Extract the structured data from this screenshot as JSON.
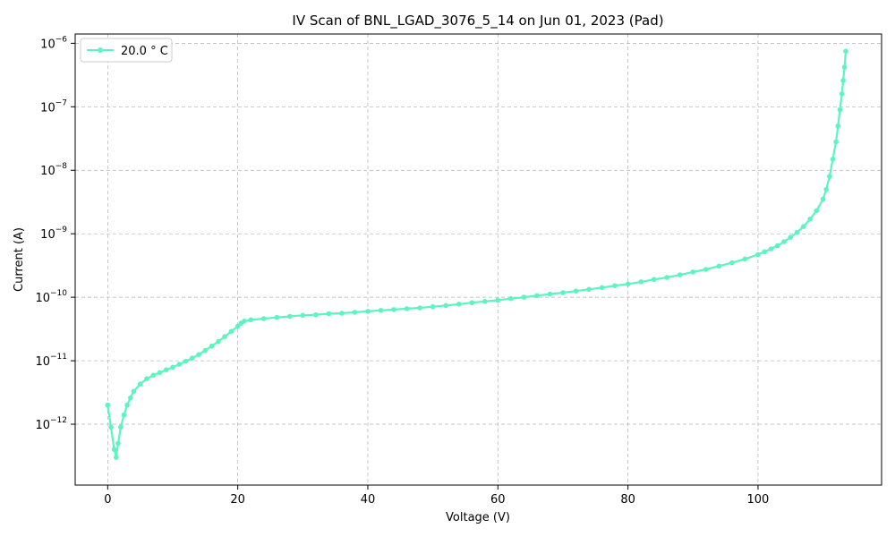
{
  "chart_data": {
    "type": "line",
    "title": "IV Scan of BNL_LGAD_3076_5_14 on Jun 01, 2023 (Pad)",
    "xlabel": "Voltage (V)",
    "ylabel": "Current (A)",
    "y_scale": "log",
    "xlim": [
      -5,
      119
    ],
    "ylim": [
      1.1e-13,
      1.4e-06
    ],
    "grid": true,
    "legend_position": "top-left",
    "x_ticks": [
      0,
      20,
      40,
      60,
      80,
      100
    ],
    "x_tick_labels": [
      "0",
      "20",
      "40",
      "60",
      "80",
      "100"
    ],
    "y_ticks": [
      1e-12,
      1e-11,
      1e-10,
      1e-09,
      1e-08,
      1e-07,
      1e-06
    ],
    "y_tick_labels": [
      {
        "base": "10",
        "exp": "−12"
      },
      {
        "base": "10",
        "exp": "−11"
      },
      {
        "base": "10",
        "exp": "−10"
      },
      {
        "base": "10",
        "exp": "−9"
      },
      {
        "base": "10",
        "exp": "−8"
      },
      {
        "base": "10",
        "exp": "−7"
      },
      {
        "base": "10",
        "exp": "−6"
      }
    ],
    "series": [
      {
        "name": "20.0$^\\circ$C",
        "legend_label": "20.0 ° C",
        "color": "#5cf5c0",
        "x": [
          0,
          0.5,
          1.0,
          1.3,
          1.6,
          2.0,
          2.5,
          3.0,
          3.5,
          4.0,
          5.0,
          6.0,
          7.0,
          8.0,
          9.0,
          10.0,
          11.0,
          12.0,
          13.0,
          14.0,
          15.0,
          16.0,
          17.0,
          18.0,
          19.0,
          20.0,
          20.5,
          21.0,
          22.0,
          24.0,
          26.0,
          28.0,
          30.0,
          32.0,
          34.0,
          36.0,
          38.0,
          40.0,
          42.0,
          44.0,
          46.0,
          48.0,
          50.0,
          52.0,
          54.0,
          56.0,
          58.0,
          60.0,
          62.0,
          64.0,
          66.0,
          68.0,
          70.0,
          72.0,
          74.0,
          76.0,
          78.0,
          80.0,
          82.0,
          84.0,
          86.0,
          88.0,
          90.0,
          92.0,
          94.0,
          96.0,
          98.0,
          100.0,
          101.0,
          102.0,
          103.0,
          104.0,
          105.0,
          106.0,
          107.0,
          108.0,
          109.0,
          110.0,
          110.5,
          111.0,
          111.5,
          112.0,
          112.3,
          112.6,
          112.9,
          113.1,
          113.3,
          113.5
        ],
        "y": [
          2e-12,
          9e-13,
          4e-13,
          3e-13,
          5e-13,
          9e-13,
          1.4e-12,
          2e-12,
          2.6e-12,
          3.3e-12,
          4.3e-12,
          5.2e-12,
          5.9e-12,
          6.5e-12,
          7.2e-12,
          7.9e-12,
          8.8e-12,
          9.8e-12,
          1.1e-11,
          1.25e-11,
          1.45e-11,
          1.7e-11,
          2e-11,
          2.4e-11,
          2.9e-11,
          3.5e-11,
          3.9e-11,
          4.2e-11,
          4.4e-11,
          4.6e-11,
          4.8e-11,
          5e-11,
          5.2e-11,
          5.3e-11,
          5.5e-11,
          5.6e-11,
          5.8e-11,
          6e-11,
          6.2e-11,
          6.4e-11,
          6.6e-11,
          6.8e-11,
          7.1e-11,
          7.4e-11,
          7.8e-11,
          8.2e-11,
          8.6e-11,
          9e-11,
          9.5e-11,
          1e-10,
          1.06e-10,
          1.12e-10,
          1.18e-10,
          1.25e-10,
          1.33e-10,
          1.42e-10,
          1.52e-10,
          1.62e-10,
          1.75e-10,
          1.9e-10,
          2.05e-10,
          2.25e-10,
          2.5e-10,
          2.75e-10,
          3.1e-10,
          3.5e-10,
          4e-10,
          4.7e-10,
          5.2e-10,
          5.8e-10,
          6.5e-10,
          7.5e-10,
          8.8e-10,
          1.05e-09,
          1.3e-09,
          1.7e-09,
          2.3e-09,
          3.5e-09,
          5e-09,
          8e-09,
          1.5e-08,
          2.8e-08,
          5e-08,
          9e-08,
          1.6e-07,
          2.6e-07,
          4.2e-07,
          7.5e-07
        ]
      }
    ]
  }
}
